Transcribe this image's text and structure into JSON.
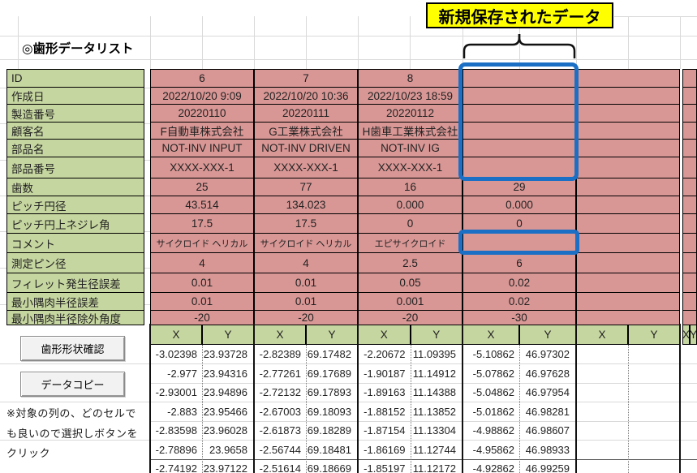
{
  "page": {
    "title": "◎歯形データリスト"
  },
  "annotation": {
    "label": "新規保存されたデータ"
  },
  "colors": {
    "headerGreen": "#c6d6a0",
    "dataPink": "#d89795",
    "highlightBlue": "#1b6fc4",
    "calloutYellow": "#ffff00",
    "buttonFace": "#f2f2f2"
  },
  "table": {
    "rowHeaders": [
      "ID",
      "作成日",
      "製造番号",
      "顧客名",
      "部品名",
      "部品番号",
      "歯数",
      "ピッチ円径",
      "ピッチ円上ネジレ角",
      "コメント",
      "測定ピン径",
      "フィレット発生径誤差",
      "最小隅肉半径誤差",
      "最小隅肉半径除外角度"
    ],
    "columns": [
      {
        "values": [
          "6",
          "2022/10/20 9:09",
          "20220110",
          "F自動車株式会社",
          "NOT-INV INPUT",
          "XXXX-XXX-1",
          "25",
          "43.514",
          "17.5",
          "サイクロイド ヘリカル",
          "4",
          "0.01",
          "0.01",
          "-20"
        ]
      },
      {
        "values": [
          "7",
          "2022/10/20 10:36",
          "20220111",
          "G工業株式会社",
          "NOT-INV DRIVEN",
          "XXXX-XXX-1",
          "77",
          "134.023",
          "17.5",
          "サイクロイド ヘリカル",
          "4",
          "0.01",
          "0.01",
          "-20"
        ]
      },
      {
        "values": [
          "8",
          "2022/10/23 18:59",
          "20220112",
          "H歯車工業株式会社",
          "NOT-INV IG",
          "XXXX-XXX-1",
          "16",
          "0.000",
          "0",
          "エピサイクロイド",
          "2.5",
          "0.05",
          "0.001",
          "-20"
        ]
      },
      {
        "values": [
          "",
          "",
          "",
          "",
          "",
          "",
          "29",
          "0.000",
          "0",
          "",
          "6",
          "0.02",
          "0.02",
          "-30"
        ]
      },
      {
        "values": [
          "",
          "",
          "",
          "",
          "",
          "",
          "",
          "",
          "",
          "",
          "",
          "",
          "",
          ""
        ]
      },
      {
        "values": [
          "",
          "",
          "",
          "",
          "",
          "",
          "",
          "",
          "",
          "",
          "",
          "",
          "",
          ""
        ]
      }
    ],
    "coordHeaders": [
      "X",
      "Y"
    ],
    "coordData": [
      {
        "x": [
          "-3.02398",
          "-2.977",
          "-2.93001",
          "-2.883",
          "-2.83598",
          "-2.78896",
          "-2.74192"
        ],
        "y": [
          "23.93728",
          "23.94316",
          "23.94896",
          "23.95466",
          "23.96028",
          "23.9658",
          "23.97122"
        ]
      },
      {
        "x": [
          "-2.82389",
          "-2.77261",
          "-2.72132",
          "-2.67003",
          "-2.61873",
          "-2.56744",
          "-2.51614"
        ],
        "y": [
          "69.17482",
          "69.17689",
          "69.17893",
          "69.18093",
          "69.18289",
          "69.18481",
          "69.18669"
        ]
      },
      {
        "x": [
          "-2.20672",
          "-1.90187",
          "-1.89163",
          "-1.88152",
          "-1.87154",
          "-1.86169",
          "-1.85197"
        ],
        "y": [
          "11.09395",
          "11.14912",
          "11.14388",
          "11.13852",
          "11.13304",
          "11.12744",
          "11.12172"
        ]
      },
      {
        "x": [
          "-5.10862",
          "-5.07862",
          "-5.04862",
          "-5.01862",
          "-4.98862",
          "-4.95862",
          "-4.92862"
        ],
        "y": [
          "46.97302",
          "46.97628",
          "46.97954",
          "46.98281",
          "46.98607",
          "46.98933",
          "46.99259"
        ]
      },
      {
        "x": [
          "",
          "",
          "",
          "",
          "",
          "",
          ""
        ],
        "y": [
          "",
          "",
          "",
          "",
          "",
          "",
          ""
        ]
      }
    ]
  },
  "buttons": {
    "checkShape": "歯形形状確認",
    "copyData": "データコピー"
  },
  "note": {
    "lines": [
      "※対象の列の、どのセルで",
      "も良いので選択しボタンを",
      "クリック"
    ]
  }
}
